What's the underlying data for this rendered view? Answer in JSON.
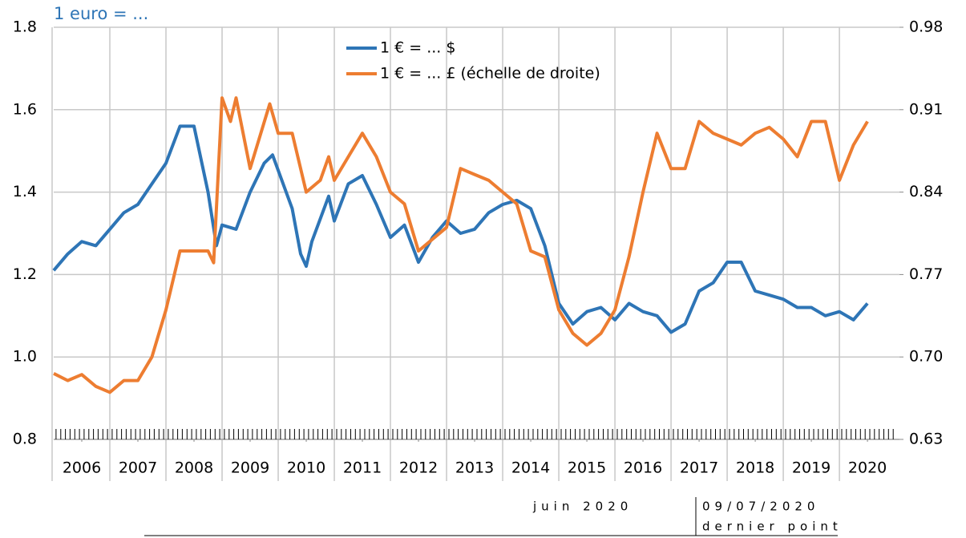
{
  "chart_data": {
    "type": "line",
    "title": "1 euro = ...",
    "xlim": [
      2006,
      2021.07
    ],
    "xticks": [
      {
        "value": 2006.5,
        "label": "2006"
      },
      {
        "value": 2007.5,
        "label": "2007"
      },
      {
        "value": 2008.5,
        "label": "2008"
      },
      {
        "value": 2009.5,
        "label": "2009"
      },
      {
        "value": 2010.5,
        "label": "2010"
      },
      {
        "value": 2011.5,
        "label": "2011"
      },
      {
        "value": 2012.5,
        "label": "2012"
      },
      {
        "value": 2013.5,
        "label": "2013"
      },
      {
        "value": 2014.5,
        "label": "2014"
      },
      {
        "value": 2015.5,
        "label": "2015"
      },
      {
        "value": 2016.5,
        "label": "2016"
      },
      {
        "value": 2017.5,
        "label": "2017"
      },
      {
        "value": 2018.5,
        "label": "2018"
      },
      {
        "value": 2019.5,
        "label": "2019"
      },
      {
        "value": 2020.5,
        "label": "2020"
      }
    ],
    "ylim": [
      0.8,
      1.8
    ],
    "yticks": [
      0.8,
      {
        "value": 1.0,
        "label": "1.0"
      },
      1.2,
      1.4,
      1.6,
      1.8
    ],
    "y2lim": [
      0.63,
      0.98
    ],
    "y2ticks": [
      0.63,
      {
        "value": 0.7,
        "label": "0.70"
      },
      0.77,
      0.84,
      0.91,
      0.98
    ],
    "grid": true,
    "series": [
      {
        "name": "1 € = ... $",
        "color": "#2e75b6",
        "x": [
          2006.0,
          2006.25,
          2006.5,
          2006.75,
          2007.0,
          2007.25,
          2007.5,
          2007.75,
          2008.0,
          2008.25,
          2008.5,
          2008.75,
          2008.9,
          2009.0,
          2009.25,
          2009.5,
          2009.75,
          2009.9,
          2010.25,
          2010.4,
          2010.5,
          2010.6,
          2010.9,
          2011.0,
          2011.25,
          2011.5,
          2011.75,
          2012.0,
          2012.25,
          2012.5,
          2012.75,
          2013.0,
          2013.25,
          2013.5,
          2013.75,
          2014.0,
          2014.25,
          2014.5,
          2014.75,
          2015.0,
          2015.25,
          2015.5,
          2015.75,
          2016.0,
          2016.25,
          2016.5,
          2016.75,
          2017.0,
          2017.25,
          2017.5,
          2017.75,
          2018.0,
          2018.25,
          2018.5,
          2018.75,
          2019.0,
          2019.25,
          2019.5,
          2019.75,
          2020.0,
          2020.25,
          2020.5
        ],
        "values": [
          1.21,
          1.25,
          1.28,
          1.27,
          1.31,
          1.35,
          1.37,
          1.42,
          1.47,
          1.56,
          1.56,
          1.4,
          1.27,
          1.32,
          1.31,
          1.4,
          1.47,
          1.49,
          1.36,
          1.25,
          1.22,
          1.28,
          1.39,
          1.33,
          1.42,
          1.44,
          1.37,
          1.29,
          1.32,
          1.23,
          1.29,
          1.33,
          1.3,
          1.31,
          1.35,
          1.37,
          1.38,
          1.36,
          1.27,
          1.13,
          1.08,
          1.11,
          1.12,
          1.09,
          1.13,
          1.11,
          1.1,
          1.06,
          1.08,
          1.16,
          1.18,
          1.23,
          1.23,
          1.16,
          1.15,
          1.14,
          1.12,
          1.12,
          1.1,
          1.11,
          1.09,
          1.13
        ]
      },
      {
        "name": "1 € = ... £ (échelle de droite)",
        "color": "#ed7d31",
        "axis": "y2",
        "x": [
          2006.0,
          2006.25,
          2006.5,
          2006.75,
          2007.0,
          2007.25,
          2007.5,
          2007.75,
          2008.0,
          2008.25,
          2008.5,
          2008.75,
          2008.85,
          2009.0,
          2009.15,
          2009.25,
          2009.5,
          2009.85,
          2010.0,
          2010.25,
          2010.5,
          2010.75,
          2010.9,
          2011.0,
          2011.25,
          2011.5,
          2011.75,
          2012.0,
          2012.25,
          2012.5,
          2012.75,
          2013.0,
          2013.25,
          2013.5,
          2013.75,
          2014.0,
          2014.25,
          2014.5,
          2014.75,
          2015.0,
          2015.25,
          2015.5,
          2015.75,
          2016.0,
          2016.25,
          2016.5,
          2016.75,
          2017.0,
          2017.25,
          2017.5,
          2017.75,
          2018.0,
          2018.25,
          2018.5,
          2018.75,
          2019.0,
          2019.25,
          2019.5,
          2019.75,
          2020.0,
          2020.25,
          2020.5
        ],
        "values": [
          0.686,
          0.68,
          0.685,
          0.675,
          0.67,
          0.68,
          0.68,
          0.7,
          0.74,
          0.79,
          0.79,
          0.79,
          0.78,
          0.92,
          0.9,
          0.92,
          0.86,
          0.915,
          0.89,
          0.89,
          0.84,
          0.85,
          0.87,
          0.85,
          0.87,
          0.89,
          0.87,
          0.84,
          0.83,
          0.79,
          0.8,
          0.81,
          0.86,
          0.855,
          0.85,
          0.84,
          0.83,
          0.79,
          0.785,
          0.74,
          0.72,
          0.71,
          0.72,
          0.74,
          0.785,
          0.84,
          0.89,
          0.86,
          0.86,
          0.9,
          0.89,
          0.885,
          0.88,
          0.89,
          0.895,
          0.885,
          0.87,
          0.9,
          0.9,
          0.85,
          0.88,
          0.9
        ]
      }
    ]
  },
  "footer": {
    "period": "juin 2020",
    "date": "09/07/2020",
    "note": "dernier point"
  }
}
